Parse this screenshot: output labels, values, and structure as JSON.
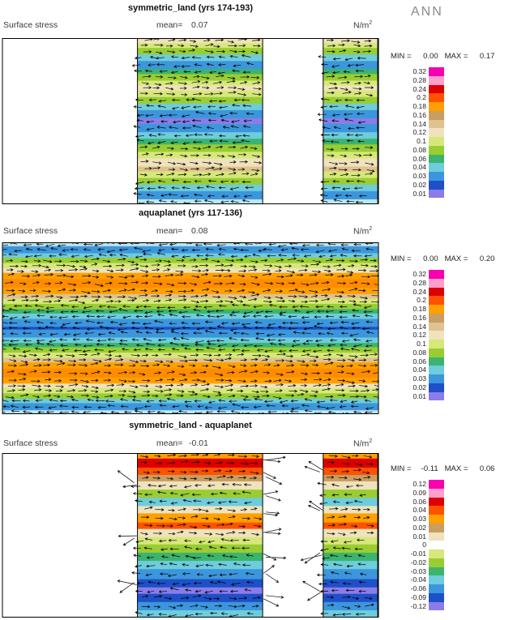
{
  "ann_label": "ANN",
  "panels": [
    {
      "title": "symmetric_land (yrs 174-193)",
      "left_label": "Surface stress",
      "mean_label": "mean=",
      "mean_value": "0.07",
      "units_base": "N/m",
      "units_exp": "2",
      "min_label": "MIN =",
      "min_value": "0.00",
      "max_label": "MAX =",
      "max_value": "0.17"
    },
    {
      "title": "aquaplanet (yrs 117-136)",
      "left_label": "Surface stress",
      "mean_label": "mean=",
      "mean_value": "0.08",
      "units_base": "N/m",
      "units_exp": "2",
      "min_label": "MIN =",
      "min_value": "0.00",
      "max_label": "MAX =",
      "max_value": "0.20"
    },
    {
      "title": "symmetric_land - aquaplanet",
      "left_label": "Surface stress",
      "mean_label": "mean=",
      "mean_value": "-0.01",
      "units_base": "N/m",
      "units_exp": "2",
      "min_label": "MIN =",
      "min_value": "-0.11",
      "max_label": "MAX =",
      "max_value": "0.06"
    }
  ],
  "chart_data": [
    {
      "type": "heatmap",
      "subtype": "vector field with magnitude contours",
      "title": "symmetric_land (yrs 174-193)",
      "field": "Surface stress",
      "season": "ANN",
      "units": "N/m^2",
      "mean": 0.07,
      "min": 0.0,
      "max": 0.17,
      "levels": [
        0.32,
        0.28,
        0.24,
        0.2,
        0.18,
        0.16,
        0.14,
        0.12,
        0.1,
        0.08,
        0.06,
        0.04,
        0.03,
        0.02,
        0.01
      ],
      "level_labels": [
        "0.32",
        "0.28",
        "0.24",
        "0.2",
        "0.18",
        "0.16",
        "0.14",
        "0.12",
        "0.1",
        "0.08",
        "0.06",
        "0.04",
        "0.03",
        "0.02",
        "0.01"
      ],
      "palette": [
        "#F800B0",
        "#FFA0CC",
        "#DE0000",
        "#FF5200",
        "#FFA000",
        "#C89E62",
        "#DEC290",
        "#F0E2BC",
        "#D6E87A",
        "#9ACD32",
        "#3CB46E",
        "#6ECCDC",
        "#3C96DC",
        "#1E50C8",
        "#8C7CE8"
      ],
      "strips": [
        [
          0.359,
          0.692
        ],
        [
          0.853,
          0.998
        ]
      ],
      "bands": [
        {
          "f": 0.03,
          "c": "#F0E2BC",
          "d": 1
        },
        {
          "f": 0.03,
          "c": "#D6E87A",
          "d": 1
        },
        {
          "f": 0.04,
          "c": "#9ACD32",
          "d": 1
        },
        {
          "f": 0.04,
          "c": "#6ECCDC",
          "d": -1
        },
        {
          "f": 0.05,
          "c": "#3C96DC",
          "d": -1
        },
        {
          "f": 0.03,
          "c": "#3CB46E",
          "d": -1
        },
        {
          "f": 0.04,
          "c": "#9ACD32",
          "d": 1
        },
        {
          "f": 0.03,
          "c": "#D6E87A",
          "d": 1
        },
        {
          "f": 0.03,
          "c": "#F0E2BC",
          "d": 1
        },
        {
          "f": 0.04,
          "c": "#D6E87A",
          "d": 1
        },
        {
          "f": 0.04,
          "c": "#9ACD32",
          "d": -1
        },
        {
          "f": 0.04,
          "c": "#6ECCDC",
          "d": -1
        },
        {
          "f": 0.05,
          "c": "#3C96DC",
          "d": -1
        },
        {
          "f": 0.035,
          "c": "#8C7CE8",
          "d": -1
        },
        {
          "f": 0.05,
          "c": "#3C96DC",
          "d": -1
        },
        {
          "f": 0.04,
          "c": "#6ECCDC",
          "d": -1
        },
        {
          "f": 0.035,
          "c": "#3CB46E",
          "d": -1
        },
        {
          "f": 0.045,
          "c": "#9ACD32",
          "d": 1
        },
        {
          "f": 0.04,
          "c": "#D6E87A",
          "d": 1
        },
        {
          "f": 0.05,
          "c": "#F0E2BC",
          "d": 1
        },
        {
          "f": 0.03,
          "c": "#DEC290",
          "d": 1
        },
        {
          "f": 0.04,
          "c": "#D6E87A",
          "d": 1
        },
        {
          "f": 0.04,
          "c": "#9ACD32",
          "d": -1
        },
        {
          "f": 0.04,
          "c": "#6ECCDC",
          "d": -1
        },
        {
          "f": 0.05,
          "c": "#3C96DC",
          "d": -1
        },
        {
          "f": 0.03,
          "c": "#BCE6EE",
          "d": -1
        }
      ]
    },
    {
      "type": "heatmap",
      "subtype": "vector field with magnitude contours",
      "title": "aquaplanet (yrs 117-136)",
      "field": "Surface stress",
      "season": "ANN",
      "units": "N/m^2",
      "mean": 0.08,
      "min": 0.0,
      "max": 0.2,
      "levels": [
        0.32,
        0.28,
        0.24,
        0.2,
        0.18,
        0.16,
        0.14,
        0.12,
        0.1,
        0.08,
        0.06,
        0.04,
        0.03,
        0.02,
        0.01
      ],
      "level_labels": [
        "0.32",
        "0.28",
        "0.24",
        "0.2",
        "0.18",
        "0.16",
        "0.14",
        "0.12",
        "0.1",
        "0.08",
        "0.06",
        "0.04",
        "0.03",
        "0.02",
        "0.01"
      ],
      "palette": [
        "#F800B0",
        "#FFA0CC",
        "#DE0000",
        "#FF5200",
        "#FFA000",
        "#C89E62",
        "#DEC290",
        "#F0E2BC",
        "#D6E87A",
        "#9ACD32",
        "#3CB46E",
        "#6ECCDC",
        "#3C96DC",
        "#1E50C8",
        "#8C7CE8"
      ],
      "strips": null,
      "bands": [
        {
          "f": 0.022,
          "c": "#BCE6EE",
          "d": -1
        },
        {
          "f": 0.04,
          "c": "#3C96DC",
          "d": -1
        },
        {
          "f": 0.025,
          "c": "#6ECCDC",
          "d": -1
        },
        {
          "f": 0.03,
          "c": "#9ACD32",
          "d": 1
        },
        {
          "f": 0.03,
          "c": "#D6E87A",
          "d": 1
        },
        {
          "f": 0.025,
          "c": "#F0E2BC",
          "d": 1
        },
        {
          "f": 0.035,
          "c": "#FFA000",
          "d": 1
        },
        {
          "f": 0.05,
          "c": "#FF8C00",
          "d": 1
        },
        {
          "f": 0.035,
          "c": "#FFA000",
          "d": 1
        },
        {
          "f": 0.025,
          "c": "#DEC290",
          "d": 1
        },
        {
          "f": 0.03,
          "c": "#D6E87A",
          "d": 1
        },
        {
          "f": 0.03,
          "c": "#9ACD32",
          "d": -1
        },
        {
          "f": 0.025,
          "c": "#3CB46E",
          "d": -1
        },
        {
          "f": 0.03,
          "c": "#6ECCDC",
          "d": -1
        },
        {
          "f": 0.045,
          "c": "#3C96DC",
          "d": -1
        },
        {
          "f": 0.015,
          "c": "#1E50C8",
          "d": -1
        },
        {
          "f": 0.045,
          "c": "#3C96DC",
          "d": -1
        },
        {
          "f": 0.03,
          "c": "#6ECCDC",
          "d": -1
        },
        {
          "f": 0.025,
          "c": "#3CB46E",
          "d": -1
        },
        {
          "f": 0.03,
          "c": "#9ACD32",
          "d": -1
        },
        {
          "f": 0.03,
          "c": "#D6E87A",
          "d": 1
        },
        {
          "f": 0.025,
          "c": "#DEC290",
          "d": 1
        },
        {
          "f": 0.035,
          "c": "#FFA000",
          "d": 1
        },
        {
          "f": 0.05,
          "c": "#FF8C00",
          "d": 1
        },
        {
          "f": 0.035,
          "c": "#FFA000",
          "d": 1
        },
        {
          "f": 0.025,
          "c": "#F0E2BC",
          "d": 1
        },
        {
          "f": 0.03,
          "c": "#D6E87A",
          "d": 1
        },
        {
          "f": 0.03,
          "c": "#9ACD32",
          "d": 1
        },
        {
          "f": 0.025,
          "c": "#6ECCDC",
          "d": -1
        },
        {
          "f": 0.04,
          "c": "#3C96DC",
          "d": -1
        },
        {
          "f": 0.022,
          "c": "#BCE6EE",
          "d": -1
        }
      ]
    },
    {
      "type": "heatmap",
      "subtype": "difference vector field with magnitude contours",
      "title": "symmetric_land - aquaplanet",
      "field": "Surface stress",
      "season": "ANN",
      "units": "N/m^2",
      "mean": -0.01,
      "min": -0.11,
      "max": 0.06,
      "levels": [
        0.12,
        0.09,
        0.06,
        0.04,
        0.03,
        0.02,
        0.01,
        0,
        -0.01,
        -0.02,
        -0.03,
        -0.04,
        -0.06,
        -0.09,
        -0.12
      ],
      "level_labels": [
        "0.12",
        "0.09",
        "0.06",
        "0.04",
        "0.03",
        "0.02",
        "0.01",
        "0",
        "-0.01",
        "-0.02",
        "-0.03",
        "-0.04",
        "-0.06",
        "-0.09",
        "-0.12"
      ],
      "palette": [
        "#F800B0",
        "#FFA0CC",
        "#DE0000",
        "#FF5200",
        "#FFA000",
        "#C89E62",
        "#F0E2BC",
        "#FFFFFF",
        "#D6E87A",
        "#9ACD32",
        "#3CB46E",
        "#6ECCDC",
        "#3C96DC",
        "#1E50C8",
        "#8C7CE8"
      ],
      "strips": [
        [
          0.359,
          0.692
        ],
        [
          0.853,
          0.998
        ]
      ],
      "spill": true,
      "bands": [
        {
          "f": 0.03,
          "c": "#FFA000",
          "d": 1
        },
        {
          "f": 0.05,
          "c": "#DE0000",
          "d": 1
        },
        {
          "f": 0.04,
          "c": "#FF5200",
          "d": 1
        },
        {
          "f": 0.035,
          "c": "#C89E62",
          "d": 1
        },
        {
          "f": 0.045,
          "c": "#F0E2BC",
          "d": -1
        },
        {
          "f": 0.045,
          "c": "#9ACD32",
          "d": -1
        },
        {
          "f": 0.045,
          "c": "#6ECCDC",
          "d": -1
        },
        {
          "f": 0.04,
          "c": "#F0E2BC",
          "d": 1
        },
        {
          "f": 0.05,
          "c": "#FFA000",
          "d": 1
        },
        {
          "f": 0.035,
          "c": "#FF5200",
          "d": 1
        },
        {
          "f": 0.045,
          "c": "#F0E2BC",
          "d": 1
        },
        {
          "f": 0.04,
          "c": "#D6E87A",
          "d": -1
        },
        {
          "f": 0.045,
          "c": "#9ACD32",
          "d": -1
        },
        {
          "f": 0.045,
          "c": "#3CB46E",
          "d": -1
        },
        {
          "f": 0.045,
          "c": "#6ECCDC",
          "d": -1
        },
        {
          "f": 0.055,
          "c": "#3C96DC",
          "d": -1
        },
        {
          "f": 0.045,
          "c": "#1E50C8",
          "d": -1
        },
        {
          "f": 0.035,
          "c": "#8C7CE8",
          "d": -1
        },
        {
          "f": 0.045,
          "c": "#1E50C8",
          "d": 1
        },
        {
          "f": 0.045,
          "c": "#3C96DC",
          "d": 1
        },
        {
          "f": 0.04,
          "c": "#6ECCDC",
          "d": -1
        }
      ]
    }
  ]
}
